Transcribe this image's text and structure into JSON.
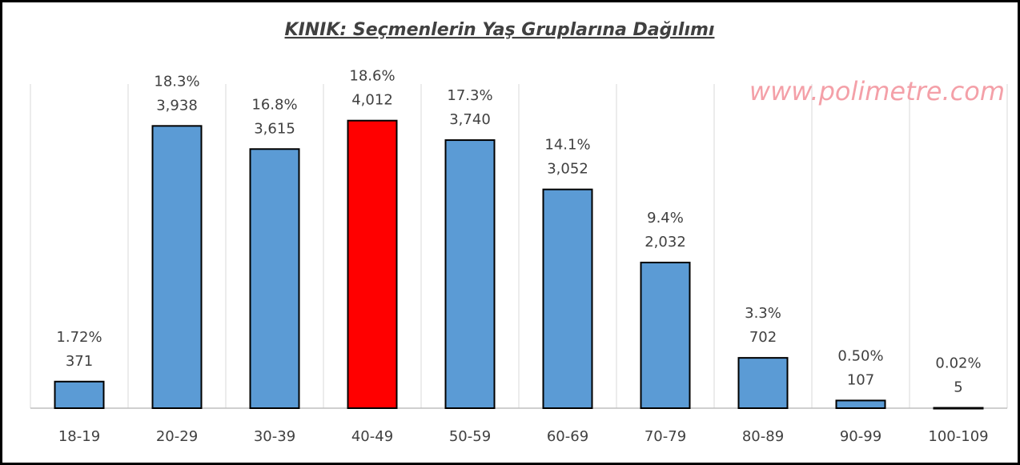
{
  "chart_data": {
    "type": "bar",
    "title": "KINIK: Seçmenlerin Yaş Gruplarına Dağılımı",
    "watermark": "www.polimetre.com",
    "categories": [
      "18-19",
      "20-29",
      "30-39",
      "40-49",
      "50-59",
      "60-69",
      "70-79",
      "80-89",
      "90-99",
      "100-109"
    ],
    "values": [
      371,
      3938,
      3615,
      4012,
      3740,
      3052,
      2032,
      702,
      107,
      5
    ],
    "value_labels": [
      "371",
      "3,938",
      "3,615",
      "4,012",
      "3,740",
      "3,052",
      "2,032",
      "702",
      "107",
      "5"
    ],
    "percent_labels": [
      "1.72%",
      "18.3%",
      "16.8%",
      "18.6%",
      "17.3%",
      "14.1%",
      "9.4%",
      "3.3%",
      "0.50%",
      "0.02%"
    ],
    "colors": [
      "#5b9bd5",
      "#5b9bd5",
      "#5b9bd5",
      "#ff0000",
      "#5b9bd5",
      "#5b9bd5",
      "#5b9bd5",
      "#5b9bd5",
      "#5b9bd5",
      "#5b9bd5"
    ],
    "ylim": [
      0,
      4500
    ],
    "grid": true
  }
}
